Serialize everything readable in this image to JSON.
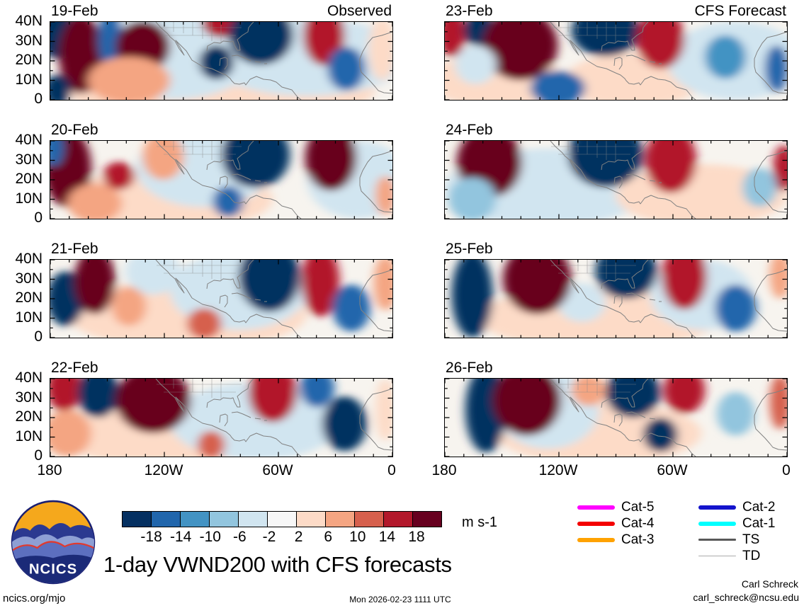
{
  "figure": {
    "title": "1-day VWND200 with CFS forecasts",
    "units": "m s-1",
    "site": "ncics.org/mjo",
    "timestamp": "Mon 2026-02-23 1111 UTC",
    "credit_name": "Carl Schreck",
    "credit_email": "carl_schreck@ncsu.edu",
    "logo_text": "NCICS"
  },
  "chart_data": {
    "type": "heatmap",
    "title": "1-day VWND200 with CFS forecasts",
    "variable": "VWND200 anomaly",
    "columns": [
      "Observed",
      "CFS Forecast"
    ],
    "lon_ticks": [
      "180",
      "120W",
      "60W",
      "0"
    ],
    "lat_ticks": [
      "40N",
      "30N",
      "20N",
      "10N",
      "0"
    ],
    "lon_range_deg_west": [
      180,
      0
    ],
    "lat_range_deg_north": [
      0,
      40
    ],
    "colorbar": {
      "levels": [
        -18,
        -14,
        -10,
        -6,
        -2,
        2,
        6,
        10,
        14,
        18
      ],
      "colors": [
        "#053061",
        "#2166ac",
        "#4393c3",
        "#92c5de",
        "#d1e5f0",
        "#f7f7f7",
        "#fddbc7",
        "#f4a582",
        "#d6604d",
        "#b2182b",
        "#67001f"
      ],
      "units": "m s-1"
    },
    "legend": [
      {
        "label": "Cat-5",
        "color": "#ff00ff",
        "thickness": 6
      },
      {
        "label": "Cat-4",
        "color": "#f40000",
        "thickness": 6
      },
      {
        "label": "Cat-3",
        "color": "#ffa200",
        "thickness": 6
      },
      {
        "label": "Cat-2",
        "color": "#1414cc",
        "thickness": 6
      },
      {
        "label": "Cat-1",
        "color": "#00ffff",
        "thickness": 6
      },
      {
        "label": "TS",
        "color": "#595959",
        "thickness": 2.5
      },
      {
        "label": "TD",
        "color": "#ababab",
        "thickness": 1.2
      }
    ],
    "panels": [
      {
        "date": "19-Feb",
        "column": "Observed",
        "col": 0,
        "row": 0,
        "anomalies": [
          [
            0.5,
            0.85,
            0.45,
            0.5,
            "#fddbc7"
          ],
          [
            0.75,
            0.45,
            0.3,
            0.5,
            "#d1e5f0"
          ],
          [
            0.35,
            0.45,
            0.25,
            0.55,
            "#d1e5f0"
          ],
          [
            0.015,
            0.12,
            0.05,
            0.35,
            "#053061"
          ],
          [
            0.09,
            0.42,
            0.065,
            0.5,
            "#67001f"
          ],
          [
            0.175,
            0.22,
            0.035,
            0.38,
            "#2166ac"
          ],
          [
            0.27,
            0.32,
            0.08,
            0.33,
            "#67001f"
          ],
          [
            0.5,
            0.02,
            0.055,
            0.18,
            "#b2182b"
          ],
          [
            0.485,
            0.52,
            0.05,
            0.22,
            "#053061"
          ],
          [
            0.615,
            0.17,
            0.095,
            0.38,
            "#053061"
          ],
          [
            0.8,
            0.18,
            0.06,
            0.38,
            "#b2182b"
          ],
          [
            0.865,
            0.6,
            0.055,
            0.28,
            "#2166ac"
          ],
          [
            0.02,
            0.88,
            0.04,
            0.2,
            "#053061"
          ],
          [
            0.23,
            0.75,
            0.12,
            0.3,
            "#f4a582"
          ],
          [
            0.97,
            0.35,
            0.04,
            0.4,
            "#fddbc7"
          ]
        ]
      },
      {
        "date": "20-Feb",
        "column": "Observed",
        "col": 0,
        "row": 1,
        "anomalies": [
          [
            0.35,
            0.75,
            0.3,
            0.4,
            "#fddbc7"
          ],
          [
            0.45,
            0.35,
            0.2,
            0.5,
            "#d1e5f0"
          ],
          [
            0.9,
            0.5,
            0.15,
            0.5,
            "#d1e5f0"
          ],
          [
            0.05,
            0.35,
            0.07,
            0.5,
            "#67001f"
          ],
          [
            0.01,
            0.08,
            0.03,
            0.25,
            "#2166ac"
          ],
          [
            0.2,
            0.45,
            0.045,
            0.18,
            "#b2182b"
          ],
          [
            0.6,
            0.18,
            0.1,
            0.42,
            "#053061"
          ],
          [
            0.82,
            0.22,
            0.075,
            0.42,
            "#67001f"
          ],
          [
            0.52,
            0.78,
            0.045,
            0.2,
            "#2166ac"
          ],
          [
            0.33,
            0.2,
            0.06,
            0.3,
            "#f4a582"
          ],
          [
            0.13,
            0.8,
            0.08,
            0.25,
            "#f4a582"
          ],
          [
            0.98,
            0.7,
            0.03,
            0.25,
            "#f4a582"
          ]
        ]
      },
      {
        "date": "21-Feb",
        "column": "Observed",
        "col": 0,
        "row": 2,
        "anomalies": [
          [
            0.4,
            0.7,
            0.35,
            0.45,
            "#fddbc7"
          ],
          [
            0.55,
            0.4,
            0.2,
            0.5,
            "#d1e5f0"
          ],
          [
            0.3,
            0.15,
            0.08,
            0.3,
            "#d1e5f0"
          ],
          [
            0.045,
            0.5,
            0.055,
            0.35,
            "#053061"
          ],
          [
            0.13,
            0.28,
            0.06,
            0.42,
            "#67001f"
          ],
          [
            0.23,
            0.6,
            0.05,
            0.25,
            "#f4a582"
          ],
          [
            0.45,
            0.82,
            0.05,
            0.2,
            "#d6604d"
          ],
          [
            0.64,
            0.22,
            0.09,
            0.45,
            "#053061"
          ],
          [
            0.79,
            0.28,
            0.055,
            0.45,
            "#b2182b"
          ],
          [
            0.88,
            0.62,
            0.055,
            0.3,
            "#2166ac"
          ],
          [
            0.98,
            0.3,
            0.035,
            0.35,
            "#f4a582"
          ]
        ]
      },
      {
        "date": "22-Feb",
        "column": "Observed",
        "col": 0,
        "row": 3,
        "anomalies": [
          [
            0.35,
            0.75,
            0.3,
            0.4,
            "#fddbc7"
          ],
          [
            0.6,
            0.55,
            0.25,
            0.5,
            "#d1e5f0"
          ],
          [
            0.04,
            0.12,
            0.05,
            0.3,
            "#b2182b"
          ],
          [
            0.14,
            0.18,
            0.06,
            0.32,
            "#053061"
          ],
          [
            0.3,
            0.28,
            0.11,
            0.42,
            "#67001f"
          ],
          [
            0.05,
            0.7,
            0.07,
            0.3,
            "#f4a582"
          ],
          [
            0.65,
            0.18,
            0.07,
            0.38,
            "#b2182b"
          ],
          [
            0.78,
            0.12,
            0.05,
            0.25,
            "#2166ac"
          ],
          [
            0.86,
            0.58,
            0.065,
            0.35,
            "#053061"
          ],
          [
            0.47,
            0.85,
            0.04,
            0.18,
            "#d6604d"
          ],
          [
            0.98,
            0.4,
            0.03,
            0.4,
            "#fddbc7"
          ]
        ]
      },
      {
        "date": "23-Feb",
        "column": "CFS Forecast",
        "col": 1,
        "row": 0,
        "anomalies": [
          [
            0.15,
            0.75,
            0.2,
            0.35,
            "#fddbc7"
          ],
          [
            0.55,
            0.75,
            0.2,
            0.35,
            "#fddbc7"
          ],
          [
            0.85,
            0.5,
            0.2,
            0.5,
            "#d1e5f0"
          ],
          [
            0.02,
            0.15,
            0.04,
            0.3,
            "#b2182b"
          ],
          [
            0.1,
            0.1,
            0.045,
            0.22,
            "#053061"
          ],
          [
            0.22,
            0.3,
            0.11,
            0.45,
            "#67001f"
          ],
          [
            0.47,
            0.12,
            0.1,
            0.32,
            "#053061"
          ],
          [
            0.63,
            0.22,
            0.07,
            0.38,
            "#b2182b"
          ],
          [
            0.33,
            0.85,
            0.08,
            0.22,
            "#2166ac"
          ],
          [
            0.82,
            0.45,
            0.06,
            0.28,
            "#4393c3"
          ],
          [
            0.97,
            0.6,
            0.035,
            0.3,
            "#2166ac"
          ],
          [
            0.09,
            0.55,
            0.06,
            0.25,
            "#d1e5f0"
          ]
        ]
      },
      {
        "date": "24-Feb",
        "column": "CFS Forecast",
        "col": 1,
        "row": 1,
        "anomalies": [
          [
            0.3,
            0.6,
            0.3,
            0.5,
            "#d1e5f0"
          ],
          [
            0.75,
            0.7,
            0.25,
            0.4,
            "#fddbc7"
          ],
          [
            0.13,
            0.28,
            0.095,
            0.45,
            "#67001f"
          ],
          [
            0.47,
            0.18,
            0.11,
            0.42,
            "#053061"
          ],
          [
            0.66,
            0.25,
            0.075,
            0.42,
            "#b2182b"
          ],
          [
            0.08,
            0.75,
            0.07,
            0.28,
            "#92c5de"
          ],
          [
            0.35,
            0.78,
            0.08,
            0.25,
            "#d1e5f0"
          ],
          [
            0.99,
            0.35,
            0.03,
            0.3,
            "#b2182b"
          ],
          [
            0.92,
            0.6,
            0.05,
            0.25,
            "#92c5de"
          ]
        ]
      },
      {
        "date": "25-Feb",
        "column": "CFS Forecast",
        "col": 1,
        "row": 2,
        "anomalies": [
          [
            0.45,
            0.75,
            0.35,
            0.4,
            "#fddbc7"
          ],
          [
            0.75,
            0.45,
            0.15,
            0.45,
            "#d1e5f0"
          ],
          [
            0.4,
            0.55,
            0.07,
            0.25,
            "#d1e5f0"
          ],
          [
            0.08,
            0.45,
            0.06,
            0.55,
            "#053061"
          ],
          [
            0.27,
            0.25,
            0.1,
            0.45,
            "#67001f"
          ],
          [
            0.53,
            0.15,
            0.09,
            0.35,
            "#053061"
          ],
          [
            0.7,
            0.22,
            0.065,
            0.42,
            "#b2182b"
          ],
          [
            0.85,
            0.62,
            0.06,
            0.3,
            "#2166ac"
          ],
          [
            0.98,
            0.2,
            0.03,
            0.3,
            "#f4a582"
          ]
        ]
      },
      {
        "date": "26-Feb",
        "column": "CFS Forecast",
        "col": 1,
        "row": 3,
        "anomalies": [
          [
            0.45,
            0.7,
            0.3,
            0.4,
            "#fddbc7"
          ],
          [
            0.3,
            0.4,
            0.15,
            0.5,
            "#d1e5f0"
          ],
          [
            0.12,
            0.4,
            0.06,
            0.55,
            "#053061"
          ],
          [
            0.24,
            0.28,
            0.1,
            0.45,
            "#67001f"
          ],
          [
            0.55,
            0.18,
            0.08,
            0.32,
            "#053061"
          ],
          [
            0.7,
            0.15,
            0.06,
            0.3,
            "#b2182b"
          ],
          [
            0.63,
            0.72,
            0.05,
            0.22,
            "#053061"
          ],
          [
            0.85,
            0.45,
            0.055,
            0.28,
            "#92c5de"
          ],
          [
            0.98,
            0.3,
            0.03,
            0.35,
            "#d6604d"
          ],
          [
            0.42,
            0.15,
            0.05,
            0.2,
            "#f4a582"
          ]
        ]
      }
    ]
  }
}
